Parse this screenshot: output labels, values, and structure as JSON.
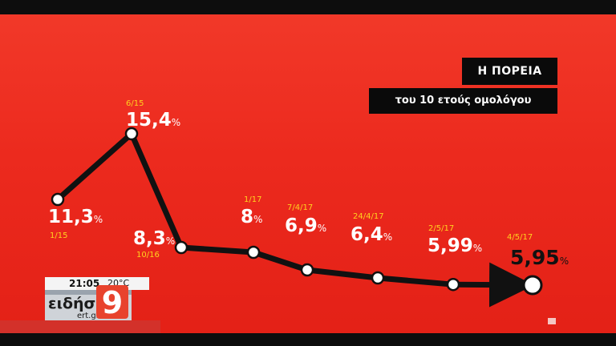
{
  "title": "Η ΠΟΡΕΙΑ",
  "subtitle": "του 10 ετούς ομολόγου",
  "chart_data": {
    "type": "line",
    "title": "Η ΠΟΡΕΙΑ",
    "subtitle": "του 10 ετούς ομολόγου",
    "x": [
      "1/15",
      "6/15",
      "10/16",
      "1/17",
      "7/4/17",
      "24/4/17",
      "2/5/17",
      "4/5/17"
    ],
    "series": [
      {
        "values": [
          11.3,
          15.4,
          8.3,
          8,
          6.9,
          6.4,
          5.99,
          5.95
        ],
        "labels": [
          "11,3",
          "15,4",
          "8,3",
          "8",
          "6,9",
          "6,4",
          "5,99",
          "5,95"
        ]
      }
    ],
    "unit": "%",
    "ylim": [
      4,
      17
    ],
    "grid": false,
    "legend": "none"
  },
  "overlay": {
    "time": "21:05",
    "temperature": "20°C",
    "logo_text": "ειδήσεις",
    "logo_sub": "ert.gr",
    "logo_number": "9"
  },
  "colors": {
    "background": "#ec2a1e",
    "line": "#111111",
    "date_labels": "#ffd21f",
    "value_labels": "#ffffff"
  }
}
